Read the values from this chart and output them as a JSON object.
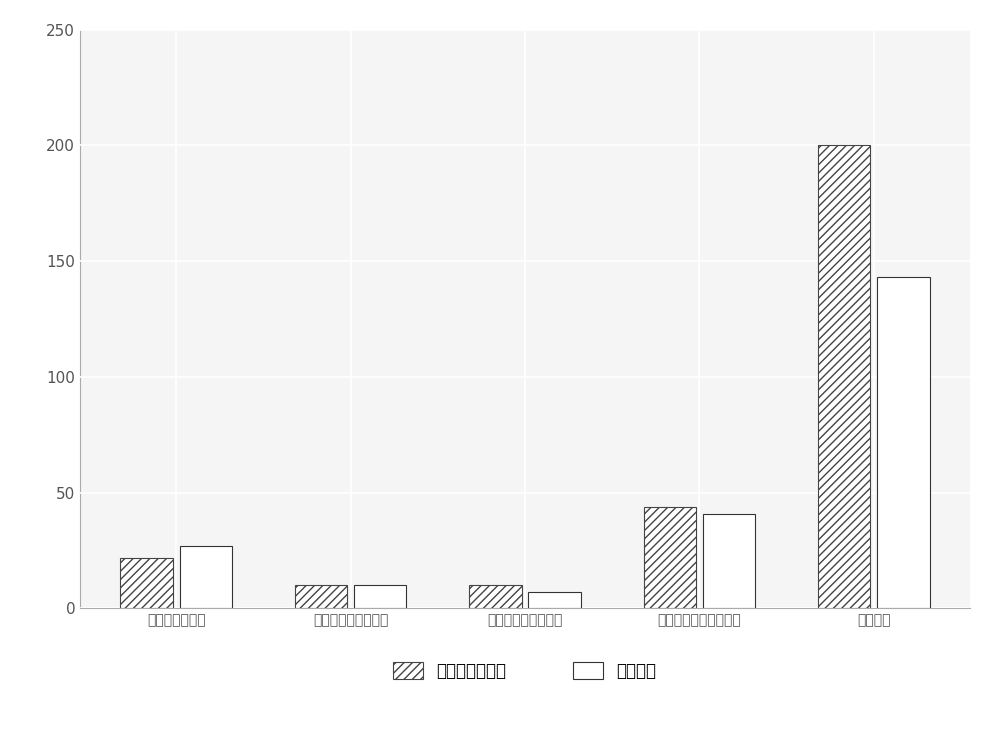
{
  "categories": [
    "美拉德反应产物",
    "苯丙氨酸类降解产物",
    "类西柏烷类降解产物",
    "类胡萝卜素类降解产物",
    "新疆二烤"
  ],
  "maillard_values": [
    22,
    10,
    10,
    44,
    200
  ],
  "low_temp_values": [
    27,
    10,
    7,
    41,
    143
  ],
  "ylim": [
    0,
    250
  ],
  "yticks": [
    0,
    50,
    100,
    150,
    200,
    250
  ],
  "bar_width": 0.3,
  "hatch_pattern": "////",
  "hatch_facecolor": "#ffffff",
  "hatch_edgecolor": "#444444",
  "open_bar_facecolor": "#ffffff",
  "open_bar_edgecolor": "#333333",
  "legend_label_1": "美拉德反应产物",
  "legend_label_2": "低温馏分",
  "figure_facecolor": "#ffffff",
  "axes_facecolor": "#f5f5f5",
  "grid_color": "#ffffff",
  "grid_linewidth": 1.2,
  "spine_color": "#aaaaaa",
  "tick_label_color": "#555555",
  "tick_label_fontsize": 10,
  "ytick_fontsize": 11
}
